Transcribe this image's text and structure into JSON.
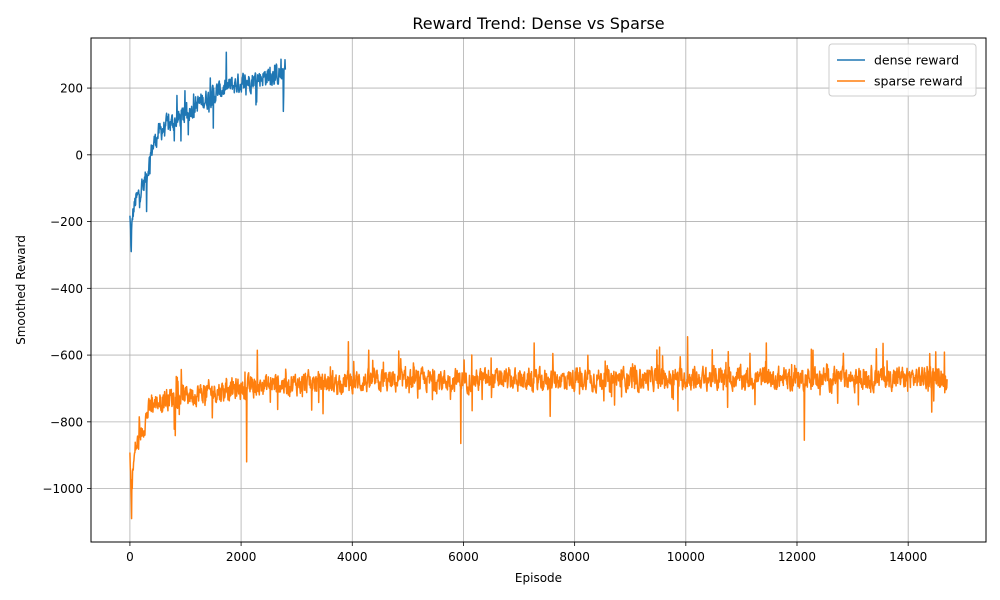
{
  "chart_data": {
    "type": "line",
    "title": "Reward Trend: Dense vs Sparse",
    "xlabel": "Episode",
    "ylabel": "Smoothed Reward",
    "xlim": [
      -700,
      15400
    ],
    "ylim": [
      -1160,
      350
    ],
    "xticks": [
      0,
      2000,
      4000,
      6000,
      8000,
      10000,
      12000,
      14000
    ],
    "yticks": [
      -1000,
      -800,
      -600,
      -400,
      -200,
      0,
      200
    ],
    "grid": true,
    "legend": "top-right",
    "series": [
      {
        "name": "dense reward",
        "color": "#1f77b4",
        "x": [
          0,
          20,
          50,
          100,
          150,
          200,
          250,
          300,
          350,
          400,
          450,
          500,
          600,
          700,
          800,
          900,
          1000,
          1100,
          1200,
          1300,
          1400,
          1500,
          1600,
          1700,
          1800,
          1900,
          2000,
          2100,
          2200,
          2300,
          2400,
          2500,
          2600,
          2700,
          2800
        ],
        "y": [
          -190,
          -270,
          -180,
          -140,
          -125,
          -100,
          -90,
          -60,
          -20,
          20,
          40,
          60,
          80,
          90,
          100,
          110,
          120,
          140,
          150,
          160,
          170,
          180,
          190,
          200,
          205,
          210,
          215,
          220,
          225,
          230,
          235,
          238,
          240,
          240,
          245
        ],
        "noise": 45,
        "spikes": [
          {
            "x": 25,
            "y": -290
          },
          {
            "x": 300,
            "y": -170
          },
          {
            "x": 1050,
            "y": 60
          },
          {
            "x": 1500,
            "y": 80
          },
          {
            "x": 2760,
            "y": 130
          },
          {
            "x": 2790,
            "y": 285
          }
        ]
      },
      {
        "name": "sparse reward",
        "color": "#ff7f0e",
        "x": [
          0,
          20,
          50,
          100,
          150,
          200,
          300,
          400,
          600,
          800,
          1000,
          1500,
          2000,
          2500,
          3000,
          4000,
          5000,
          6000,
          7000,
          8000,
          9000,
          10000,
          11000,
          12000,
          13000,
          14000,
          14700
        ],
        "y": [
          -900,
          -1020,
          -950,
          -880,
          -860,
          -840,
          -780,
          -750,
          -730,
          -725,
          -720,
          -710,
          -700,
          -690,
          -685,
          -680,
          -678,
          -675,
          -675,
          -672,
          -672,
          -670,
          -670,
          -670,
          -668,
          -668,
          -665
        ],
        "noise": 50,
        "spikes": [
          {
            "x": 30,
            "y": -1090
          },
          {
            "x": 2100,
            "y": -920
          },
          {
            "x": 5950,
            "y": -865
          },
          {
            "x": 12130,
            "y": -855
          },
          {
            "x": 10030,
            "y": -545
          },
          {
            "x": 3930,
            "y": -560
          },
          {
            "x": 13550,
            "y": -565
          }
        ]
      }
    ]
  }
}
